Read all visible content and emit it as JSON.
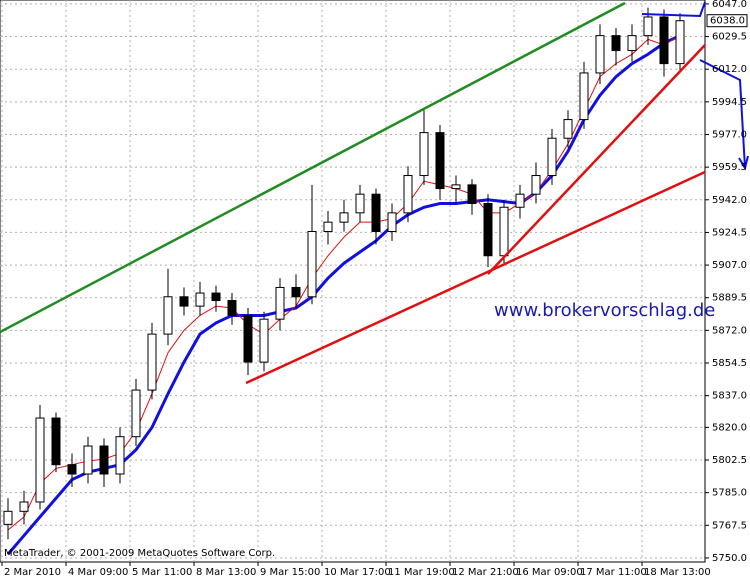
{
  "chart_data": {
    "type": "candlestick",
    "watermark": "MetaTrader, © 2001-2009 MetaQuotes Software Corp.",
    "annotation": "www.brokervorschlag.de",
    "price_label": {
      "value": 6038,
      "label": "6038.0"
    },
    "categories": [
      "2 Mar 2010",
      null,
      null,
      null,
      "4 Mar 09:00",
      null,
      null,
      null,
      "5 Mar 11:00",
      null,
      null,
      null,
      "8 Mar 13:00",
      null,
      null,
      null,
      "9 Mar 15:00",
      null,
      null,
      null,
      "10 Mar 17:00",
      null,
      null,
      null,
      "11 Mar 19:00",
      null,
      null,
      null,
      "12 Mar 21:00",
      null,
      null,
      null,
      "16 Mar 09:00",
      null,
      null,
      null,
      "17 Mar 11:00",
      null,
      null,
      null,
      "18 Mar 13:00",
      null,
      null
    ],
    "open": [
      5768,
      5775,
      5780,
      5825,
      5800,
      5795,
      5810,
      5795,
      5815,
      5840,
      5870,
      5890,
      5885,
      5892,
      5888,
      5880,
      5855,
      5878,
      5895,
      5890,
      5925,
      5930,
      5935,
      5945,
      5925,
      5935,
      5955,
      5978,
      5948,
      5950,
      5940,
      5912,
      5938,
      5945,
      5955,
      5975,
      5985,
      6010,
      6030,
      6022,
      6030,
      6040,
      6015
    ],
    "high": [
      5782,
      5786,
      5832,
      5828,
      5806,
      5815,
      5814,
      5820,
      5846,
      5876,
      5905,
      5895,
      5898,
      5896,
      5892,
      5884,
      5882,
      5900,
      5902,
      5950,
      5936,
      5942,
      5950,
      5948,
      5940,
      5960,
      5990,
      5982,
      5955,
      5953,
      5945,
      5942,
      5950,
      5962,
      5980,
      5990,
      6016,
      6036,
      6034,
      6036,
      6045,
      6044,
      6042
    ],
    "low": [
      5760,
      5768,
      5776,
      5796,
      5788,
      5790,
      5788,
      5790,
      5810,
      5835,
      5864,
      5880,
      5880,
      5882,
      5875,
      5848,
      5850,
      5872,
      5884,
      5886,
      5918,
      5925,
      5930,
      5918,
      5920,
      5930,
      5950,
      5942,
      5940,
      5934,
      5906,
      5908,
      5932,
      5940,
      5950,
      5970,
      5980,
      6004,
      6014,
      6016,
      6025,
      6008,
      6010
    ],
    "close": [
      5775,
      5780,
      5825,
      5800,
      5795,
      5810,
      5795,
      5815,
      5840,
      5870,
      5890,
      5885,
      5892,
      5888,
      5880,
      5855,
      5878,
      5895,
      5890,
      5925,
      5930,
      5935,
      5945,
      5925,
      5935,
      5955,
      5978,
      5948,
      5950,
      5940,
      5912,
      5938,
      5945,
      5955,
      5975,
      5985,
      6010,
      6030,
      6022,
      6030,
      6040,
      6015,
      6038
    ],
    "series": [
      {
        "color": "#1010e0",
        "values": [
          5752,
          5762,
          5772,
          5782,
          5792,
          5796,
          5798,
          5800,
          5808,
          5820,
          5838,
          5855,
          5870,
          5876,
          5880,
          5880,
          5880,
          5882,
          5884,
          5890,
          5900,
          5908,
          5914,
          5920,
          5928,
          5934,
          5938,
          5940,
          5940,
          5941,
          5942,
          5941,
          5940,
          5946,
          5955,
          5968,
          5985,
          5998,
          6008,
          6015,
          6020,
          6026,
          6030
        ]
      },
      {
        "color": "#e01010",
        "values": [
          5765,
          5772,
          5790,
          5798,
          5800,
          5802,
          5803,
          5806,
          5818,
          5838,
          5860,
          5872,
          5880,
          5885,
          5884,
          5875,
          5870,
          5878,
          5885,
          5900,
          5912,
          5922,
          5930,
          5930,
          5932,
          5940,
          5952,
          5950,
          5948,
          5945,
          5935,
          5935,
          5940,
          5946,
          5958,
          5972,
          5990,
          6008,
          6015,
          6020,
          6028,
          6025,
          6030
        ]
      }
    ],
    "ylim": [
      5748.9,
      6049.1
    ],
    "yticks": [
      {
        "value": 6047,
        "label": "6047.0"
      },
      {
        "value": 6029.5,
        "label": "6029.5"
      },
      {
        "value": 6012,
        "label": "6012.0"
      },
      {
        "value": 5994.5,
        "label": "5994.5"
      },
      {
        "value": 5977,
        "label": "5977.0"
      },
      {
        "value": 5959.5,
        "label": "5959.5"
      },
      {
        "value": 5942,
        "label": "5942.0"
      },
      {
        "value": 5924.5,
        "label": "5924.5"
      },
      {
        "value": 5907,
        "label": "5907.0"
      },
      {
        "value": 5889.5,
        "label": "5889.5"
      },
      {
        "value": 5872,
        "label": "5872.0"
      },
      {
        "value": 5854.5,
        "label": "5854.5"
      },
      {
        "value": 5837,
        "label": "5837.0"
      },
      {
        "value": 5820,
        "label": "5820.0"
      },
      {
        "value": 5802.5,
        "label": "5802.5"
      },
      {
        "value": 5785,
        "label": "5785.0"
      },
      {
        "value": 5767.5,
        "label": "5767.5"
      },
      {
        "value": 5750,
        "label": "5750.0"
      }
    ],
    "grid": true
  }
}
